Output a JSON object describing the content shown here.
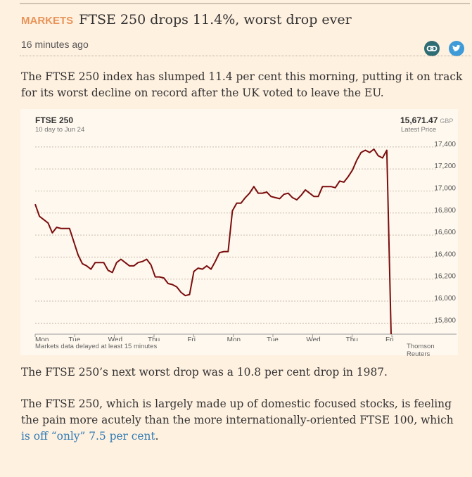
{
  "article": {
    "kicker": "MARKETS",
    "title": "FTSE 250 drops 11.4%, worst drop ever",
    "time": "16 minutes ago",
    "para1": "The FTSE 250 index has slumped 11.4 per cent this morning, putting it on track for its worst decline on record after the UK voted to leave the EU.",
    "para2": "The FTSE 250’s next worst drop was a 10.8 per cent drop in 1987.",
    "para3_prefix": "The FTSE 250, which is largely made up of domestic focused stocks, is feeling the pain more acutely than the more internationally-oriented FTSE 100, which ",
    "para3_link": "is off “only” 7.5 per cent",
    "para3_suffix": "."
  },
  "icons": {
    "share_link": "link-icon",
    "share_twitter": "twitter-icon"
  },
  "chart_header": {
    "title": "FTSE 250",
    "subtitle": "10 day to Jun 24",
    "price": "15,671.47",
    "currency": "GBP",
    "price_label": "Latest Price",
    "footnote": "Markets data delayed at least 15 minutes",
    "source": "Thomson Reuters"
  },
  "colors": {
    "line": "#7a0d0d",
    "kicker": "#e8945a",
    "background": "#fff1e0",
    "link": "#2f7bb5"
  },
  "chart_data": {
    "type": "line",
    "title": "FTSE 250",
    "x_labels": [
      "Mon",
      "Tue",
      "Wed",
      "Thu",
      "Fri",
      "Mon",
      "Tue",
      "Wed",
      "Thu",
      "Fri"
    ],
    "y_ticks": [
      17400,
      17200,
      17000,
      16800,
      16600,
      16400,
      16200,
      16000,
      15800
    ],
    "y_tick_labels": [
      "17,400",
      "17,200",
      "17,000",
      "16,800",
      "16,600",
      "16,400",
      "16,200",
      "16,000",
      "15,800"
    ],
    "ylim": [
      15700,
      17450
    ],
    "grid": true,
    "series": [
      {
        "values": [
          16880,
          16770,
          16740,
          16710,
          16620,
          16670,
          16660,
          16660,
          16660,
          16540,
          16420,
          16340,
          16320,
          16290,
          16350,
          16350,
          16350,
          16280,
          16260,
          16350,
          16380,
          16350,
          16320,
          16320,
          16350,
          16360,
          16380,
          16330,
          16220,
          16220,
          16210,
          16160,
          16150,
          16130,
          16080,
          16050,
          16060,
          16270,
          16300,
          16290,
          16320,
          16290,
          16360,
          16440,
          16450,
          16450,
          16820,
          16890,
          16890,
          16940,
          16980,
          17040,
          16980,
          16980,
          16990,
          16950,
          16940,
          16930,
          16970,
          16980,
          16940,
          16920,
          16960,
          17010,
          16980,
          16950,
          16950,
          17040,
          17040,
          17040,
          17030,
          17090,
          17080,
          17130,
          17190,
          17280,
          17350,
          17370,
          17350,
          17380,
          17320,
          17300,
          17370,
          15700
        ]
      }
    ]
  }
}
